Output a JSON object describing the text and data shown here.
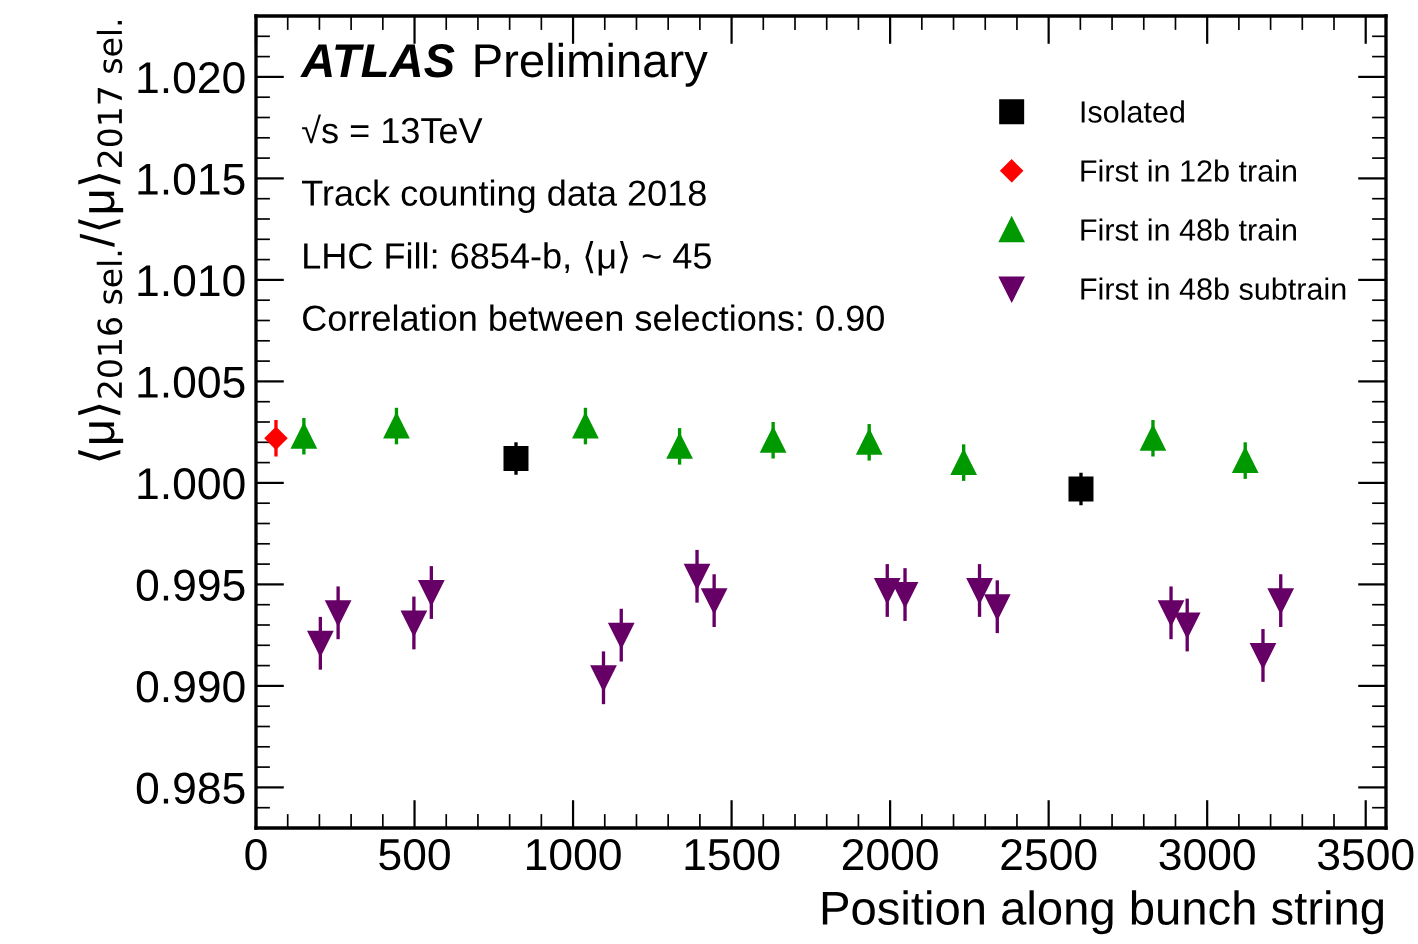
{
  "chart_data": {
    "type": "scatter",
    "title": "ATLAS",
    "subtitle": "Preliminary",
    "xlabel": "Position along bunch string",
    "ylabel": "⟨μ⟩$_{2016 sel.}$/⟨μ⟩$_{2017 sel.}$",
    "annotations": [
      "√s = 13TeV",
      "Track counting data 2018",
      "LHC Fill: 6854-b, ⟨μ⟩ ~ 45",
      "Correlation between selections: 0.90"
    ],
    "xlim": [
      0,
      3564
    ],
    "ylim": [
      0.983,
      1.023
    ],
    "xticks": [
      0,
      500,
      1000,
      1500,
      2000,
      2500,
      3000,
      3500
    ],
    "yticks": [
      {
        "value": 0.985,
        "label": "0.985"
      },
      {
        "value": 0.99,
        "label": "0.990"
      },
      {
        "value": 0.995,
        "label": "0.995"
      },
      {
        "value": 1.0,
        "label": "1.000"
      },
      {
        "value": 1.005,
        "label": "1.005"
      },
      {
        "value": 1.01,
        "label": "1.010"
      },
      {
        "value": 1.015,
        "label": "1.015"
      },
      {
        "value": 1.02,
        "label": "1.020"
      }
    ],
    "grid": false,
    "legend": "top right",
    "series": [
      {
        "name": "Isolated",
        "color": "#000000",
        "marker": "square",
        "x": [
          820,
          2602
        ],
        "values": [
          1.0012,
          0.9997
        ],
        "errors": [
          0.0008,
          0.0008
        ]
      },
      {
        "name": "First in 12b train",
        "color": "#ff0000",
        "marker": "diamond",
        "x": [
          63
        ],
        "values": [
          1.0022
        ],
        "errors": [
          0.0009
        ]
      },
      {
        "name": "First in 48b train",
        "color": "#009900",
        "marker": "triangle",
        "x": [
          151,
          443,
          1039,
          1336,
          1631,
          1934,
          2232,
          2829,
          3120
        ],
        "values": [
          1.0023,
          1.0028,
          1.0028,
          1.0018,
          1.0021,
          1.002,
          1.001,
          1.0022,
          1.0011
        ],
        "errors": [
          0.0009,
          0.0009,
          0.0009,
          0.0009,
          0.0009,
          0.0009,
          0.0009,
          0.0009,
          0.0009
        ]
      },
      {
        "name": "First in 48b subtrain",
        "color": "#660066",
        "marker": "triangle_down",
        "x": [
          203,
          259,
          498,
          553,
          1096,
          1152,
          1391,
          1445,
          1991,
          2047,
          2282,
          2338,
          2886,
          2937,
          3176,
          3232
        ],
        "values": [
          0.9921,
          0.9936,
          0.9931,
          0.9946,
          0.9904,
          0.9925,
          0.9954,
          0.9942,
          0.9947,
          0.9945,
          0.9947,
          0.9939,
          0.9936,
          0.993,
          0.9915,
          0.9942
        ],
        "errors": [
          0.0013,
          0.0013,
          0.0013,
          0.0013,
          0.0013,
          0.0013,
          0.0013,
          0.0013,
          0.0013,
          0.0013,
          0.0013,
          0.0013,
          0.0013,
          0.0013,
          0.0013,
          0.0013
        ]
      }
    ]
  }
}
